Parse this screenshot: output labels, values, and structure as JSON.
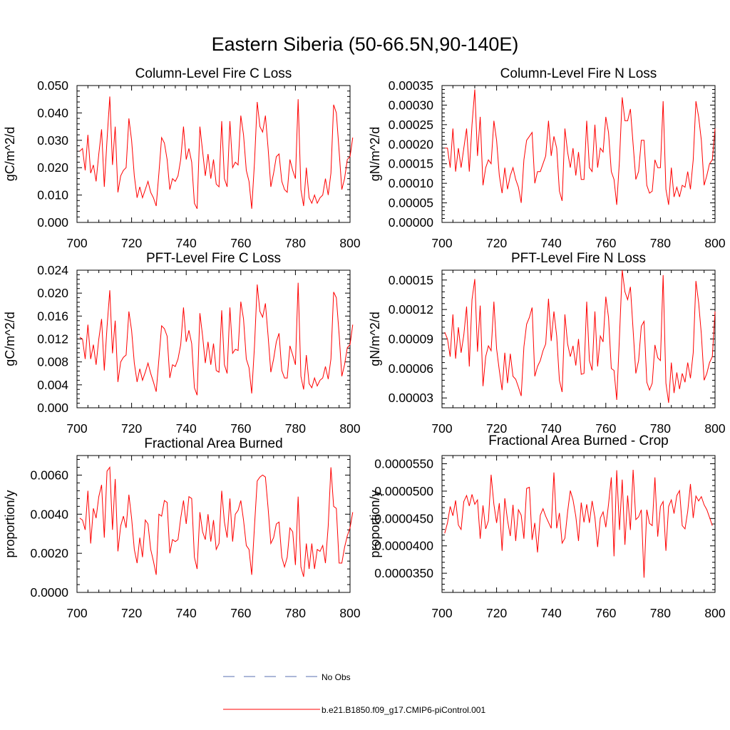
{
  "chart_data": {
    "type": "line",
    "title": "Eastern Siberia (50-66.5N,90-140E)",
    "legend": {
      "placement": "bottom",
      "entries": [
        {
          "label": "No Obs",
          "color": "#5a6fb0",
          "style": "dashed"
        },
        {
          "label": "b.e21.B1850.f09_g17.CMIP6-piControl.001",
          "color": "#ff0000",
          "style": "solid"
        }
      ]
    },
    "panels": [
      {
        "title": "Column-Level Fire C Loss",
        "ylabel": "gC/m^2/d",
        "xlim": [
          700,
          800
        ],
        "ylim": [
          0,
          0.05
        ],
        "xticks": [
          700,
          720,
          740,
          760,
          780,
          800
        ],
        "xtick_labels": [
          "700",
          "720",
          "740",
          "760",
          "780",
          "800"
        ],
        "yticks": [
          0,
          0.01,
          0.02,
          0.03,
          0.04,
          0.05
        ],
        "ytick_labels": [
          "0.000",
          "0.010",
          "0.020",
          "0.030",
          "0.040",
          "0.050"
        ],
        "x_start": 701,
        "values": [
          0.026,
          0.027,
          0.019,
          0.032,
          0.018,
          0.021,
          0.015,
          0.025,
          0.034,
          0.013,
          0.03,
          0.046,
          0.021,
          0.035,
          0.011,
          0.017,
          0.019,
          0.02,
          0.038,
          0.03,
          0.017,
          0.009,
          0.013,
          0.009,
          0.012,
          0.015,
          0.011,
          0.009,
          0.006,
          0.018,
          0.031,
          0.029,
          0.023,
          0.012,
          0.016,
          0.015,
          0.017,
          0.023,
          0.035,
          0.023,
          0.027,
          0.022,
          0.007,
          0.005,
          0.035,
          0.026,
          0.017,
          0.025,
          0.016,
          0.023,
          0.014,
          0.013,
          0.037,
          0.016,
          0.013,
          0.037,
          0.02,
          0.022,
          0.021,
          0.039,
          0.032,
          0.019,
          0.015,
          0.005,
          0.022,
          0.044,
          0.035,
          0.033,
          0.039,
          0.027,
          0.013,
          0.018,
          0.024,
          0.025,
          0.015,
          0.012,
          0.011,
          0.023,
          0.019,
          0.016,
          0.045,
          0.012,
          0.006,
          0.02,
          0.009,
          0.007,
          0.01,
          0.007,
          0.009,
          0.01,
          0.016,
          0.01,
          0.018,
          0.043,
          0.04,
          0.026,
          0.012,
          0.016,
          0.023,
          0.024,
          0.031
        ]
      },
      {
        "title": "Column-Level Fire N Loss",
        "ylabel": "gN/m^2/d",
        "xlim": [
          700,
          800
        ],
        "ylim": [
          0,
          0.00035
        ],
        "xticks": [
          700,
          720,
          740,
          760,
          780,
          800
        ],
        "xtick_labels": [
          "700",
          "720",
          "740",
          "760",
          "780",
          "800"
        ],
        "yticks": [
          0,
          5e-05,
          0.0001,
          0.00015,
          0.0002,
          0.00025,
          0.0003,
          0.00035
        ],
        "ytick_labels": [
          "0.00000",
          "0.00005",
          "0.00010",
          "0.00015",
          "0.00020",
          "0.00025",
          "0.00030",
          "0.00035"
        ],
        "x_start": 701,
        "values": [
          0.00019,
          0.00019,
          0.00014,
          0.00024,
          0.00013,
          0.00019,
          0.00014,
          0.00019,
          0.00024,
          0.00013,
          0.00025,
          0.00034,
          0.00017,
          0.00027,
          9.5e-05,
          0.00014,
          0.00016,
          0.00015,
          0.00026,
          0.00021,
          0.00012,
          7.5e-05,
          0.00014,
          8.5e-05,
          0.00012,
          0.00014,
          0.00011,
          9e-05,
          5e-05,
          0.00016,
          0.00021,
          0.00022,
          0.00023,
          0.0001,
          0.00013,
          0.00013,
          0.00015,
          0.00017,
          0.00026,
          0.00017,
          0.00022,
          0.00019,
          8e-05,
          5.5e-05,
          0.00024,
          0.00018,
          0.00014,
          0.00019,
          0.00012,
          0.00018,
          0.00011,
          0.00011,
          0.00026,
          0.00014,
          0.00013,
          0.00025,
          0.00014,
          0.00019,
          0.00018,
          0.00027,
          0.00023,
          0.00013,
          0.00011,
          4.5e-05,
          0.00016,
          0.00032,
          0.00026,
          0.00026,
          0.00029,
          0.0002,
          0.00011,
          0.00013,
          0.00021,
          0.00021,
          9.5e-05,
          7.5e-05,
          8e-05,
          0.00016,
          0.00014,
          0.00014,
          0.00031,
          8.5e-05,
          4.5e-05,
          0.00014,
          6.5e-05,
          9e-05,
          6.5e-05,
          9.5e-05,
          9e-05,
          0.00013,
          8.5e-05,
          0.00016,
          0.00031,
          0.00027,
          0.00021,
          9.5e-05,
          0.00012,
          0.00015,
          0.00016,
          0.00024
        ]
      },
      {
        "title": "PFT-Level Fire C Loss",
        "ylabel": "gC/m^2/d",
        "xlim": [
          700,
          800
        ],
        "ylim": [
          0,
          0.024
        ],
        "xticks": [
          700,
          720,
          740,
          760,
          780,
          800
        ],
        "xtick_labels": [
          "700",
          "720",
          "740",
          "760",
          "780",
          "800"
        ],
        "yticks": [
          0,
          0.004,
          0.008,
          0.012,
          0.016,
          0.02,
          0.024
        ],
        "ytick_labels": [
          "0.000",
          "0.004",
          "0.008",
          "0.012",
          "0.016",
          "0.020",
          "0.024"
        ],
        "x_start": 701,
        "values": [
          0.0123,
          0.012,
          0.0085,
          0.0145,
          0.0085,
          0.011,
          0.0075,
          0.012,
          0.0155,
          0.0065,
          0.014,
          0.0205,
          0.0095,
          0.0152,
          0.0045,
          0.008,
          0.0088,
          0.0092,
          0.0168,
          0.0135,
          0.0078,
          0.0045,
          0.0068,
          0.0048,
          0.0062,
          0.0078,
          0.006,
          0.0045,
          0.0028,
          0.0085,
          0.0143,
          0.0138,
          0.0125,
          0.0052,
          0.0075,
          0.0072,
          0.0085,
          0.011,
          0.0175,
          0.0115,
          0.0135,
          0.0112,
          0.0035,
          0.0022,
          0.0165,
          0.0125,
          0.0078,
          0.0115,
          0.0075,
          0.0112,
          0.0065,
          0.0062,
          0.017,
          0.0075,
          0.006,
          0.0175,
          0.0095,
          0.0102,
          0.01,
          0.0185,
          0.0155,
          0.0085,
          0.007,
          0.0025,
          0.0108,
          0.0215,
          0.0168,
          0.0158,
          0.0182,
          0.0125,
          0.0062,
          0.0085,
          0.0115,
          0.013,
          0.0065,
          0.0052,
          0.0052,
          0.0108,
          0.0092,
          0.0075,
          0.0218,
          0.0055,
          0.0032,
          0.0092,
          0.0042,
          0.0035,
          0.0052,
          0.0038,
          0.0048,
          0.0052,
          0.0072,
          0.005,
          0.0085,
          0.0202,
          0.0192,
          0.0128,
          0.0055,
          0.0075,
          0.0105,
          0.011,
          0.0145
        ]
      },
      {
        "title": "PFT-Level Fire N Loss",
        "ylabel": "gN/m^2/d",
        "xlim": [
          700,
          800
        ],
        "ylim": [
          2e-05,
          0.00016
        ],
        "xticks": [
          700,
          720,
          740,
          760,
          780,
          800
        ],
        "xtick_labels": [
          "700",
          "720",
          "740",
          "760",
          "780",
          "800"
        ],
        "yticks": [
          3e-05,
          6e-05,
          9e-05,
          0.00012,
          0.00015
        ],
        "ytick_labels": [
          "0.00003",
          "0.00006",
          "0.00009",
          "0.00012",
          "0.00015"
        ],
        "x_start": 701,
        "values": [
          9.7e-05,
          9e-05,
          7.2e-05,
          0.000115,
          7e-05,
          0.000102,
          7.6e-05,
          9.4e-05,
          0.000123,
          6.2e-05,
          0.00013,
          0.000151,
          7.7e-05,
          0.000124,
          4.2e-05,
          7.2e-05,
          8.3e-05,
          7.8e-05,
          0.000128,
          8e-05,
          5.8e-05,
          3.8e-05,
          7.6e-05,
          4.5e-05,
          7.5e-05,
          5.2e-05,
          4.9e-05,
          4.1e-05,
          3.2e-05,
          8.2e-05,
          0.000105,
          0.000112,
          0.000122,
          5.2e-05,
          6.2e-05,
          6.8e-05,
          7.8e-05,
          8.5e-05,
          0.000131,
          8.8e-05,
          0.000118,
          9.3e-05,
          4.8e-05,
          3.6e-05,
          0.000115,
          8.5e-05,
          7.2e-05,
          8.3e-05,
          6.3e-05,
          9e-05,
          5.4e-05,
          5.5e-05,
          0.000128,
          6.8e-05,
          5.8e-05,
          0.000118,
          6.2e-05,
          9.3e-05,
          8.7e-05,
          0.000133,
          0.000112,
          6e-05,
          5.8e-05,
          2.8e-05,
          9.3e-05,
          0.00016,
          0.000138,
          0.00013,
          0.000143,
          9.9e-05,
          5.5e-05,
          6.8e-05,
          0.000103,
          0.000108,
          4.6e-05,
          3.8e-05,
          4.5e-05,
          8.4e-05,
          7.1e-05,
          6.8e-05,
          0.000155,
          4.5e-05,
          2.5e-05,
          6.6e-05,
          3.5e-05,
          5.6e-05,
          3.9e-05,
          5.5e-05,
          4.6e-05,
          6.6e-05,
          5e-05,
          7.6e-05,
          0.000149,
          0.000127,
          9.5e-05,
          4.8e-05,
          5.5e-05,
          6.6e-05,
          7.2e-05,
          0.000118
        ]
      },
      {
        "title": "Fractional Area Burned",
        "ylabel": "proportion/y",
        "xlim": [
          700,
          800
        ],
        "ylim": [
          0,
          0.007
        ],
        "xticks": [
          700,
          720,
          740,
          760,
          780,
          800
        ],
        "xtick_labels": [
          "700",
          "720",
          "740",
          "760",
          "780",
          "800"
        ],
        "yticks": [
          0,
          0.002,
          0.004,
          0.006
        ],
        "ytick_labels": [
          "0.0000",
          "0.0020",
          "0.0040",
          "0.0060"
        ],
        "x_start": 701,
        "values": [
          0.0038,
          0.0037,
          0.0032,
          0.0052,
          0.0025,
          0.0043,
          0.0038,
          0.0049,
          0.0055,
          0.0028,
          0.0062,
          0.0064,
          0.0032,
          0.0058,
          0.0021,
          0.0034,
          0.0039,
          0.0033,
          0.005,
          0.0038,
          0.0022,
          0.0015,
          0.0028,
          0.0018,
          0.0037,
          0.0035,
          0.0022,
          0.0016,
          0.0009,
          0.004,
          0.0039,
          0.0047,
          0.0046,
          0.002,
          0.0027,
          0.0026,
          0.0027,
          0.0038,
          0.0047,
          0.0035,
          0.0049,
          0.0048,
          0.0018,
          0.0012,
          0.0041,
          0.0031,
          0.0027,
          0.004,
          0.0026,
          0.0037,
          0.0022,
          0.0025,
          0.0052,
          0.0036,
          0.0028,
          0.0048,
          0.0026,
          0.004,
          0.0042,
          0.0047,
          0.0037,
          0.0024,
          0.0022,
          0.0009,
          0.0034,
          0.0057,
          0.0059,
          0.006,
          0.0059,
          0.0043,
          0.0025,
          0.0028,
          0.0035,
          0.0036,
          0.0018,
          0.0013,
          0.0018,
          0.0033,
          0.0031,
          0.0014,
          0.0049,
          0.0013,
          0.0008,
          0.0025,
          0.0012,
          0.0025,
          0.0012,
          0.0022,
          0.0021,
          0.0024,
          0.0015,
          0.0034,
          0.0064,
          0.0044,
          0.0043,
          0.0015,
          0.0015,
          0.0023,
          0.0029,
          0.0033,
          0.0041
        ]
      },
      {
        "title": "Fractional Area Burned - Crop",
        "ylabel": "proportion/y",
        "xlim": [
          700,
          800
        ],
        "ylim": [
          3.15e-05,
          5.65e-05
        ],
        "xticks": [
          700,
          720,
          740,
          760,
          780,
          800
        ],
        "xtick_labels": [
          "700",
          "720",
          "740",
          "760",
          "780",
          "800"
        ],
        "yticks": [
          3.5e-05,
          4e-05,
          4.5e-05,
          5e-05,
          5.5e-05
        ],
        "ytick_labels": [
          "0.0000350",
          "0.0000400",
          "0.0000450",
          "0.0000500",
          "0.0000550"
        ],
        "x_start": 701,
        "values": [
          4.23e-05,
          4.42e-05,
          4.72e-05,
          4.55e-05,
          4.83e-05,
          4.38e-05,
          4.3e-05,
          4.81e-05,
          4.92e-05,
          4.73e-05,
          4.94e-05,
          4.76e-05,
          4.84e-05,
          4.13e-05,
          4.74e-05,
          4.31e-05,
          4.46e-05,
          5.3e-05,
          4.76e-05,
          4.42e-05,
          4.78e-05,
          3.91e-05,
          4.87e-05,
          4.47e-05,
          4.18e-05,
          4.75e-05,
          4.09e-05,
          4.66e-05,
          4.56e-05,
          4.13e-05,
          5.05e-05,
          5.07e-05,
          4.11e-05,
          4.42e-05,
          3.88e-05,
          4.56e-05,
          4.68e-05,
          4.54e-05,
          4.43e-05,
          4.32e-05,
          5.34e-05,
          4.32e-05,
          4.6e-05,
          4.05e-05,
          4.14e-05,
          4.62e-05,
          5.01e-05,
          4.84e-05,
          4.54e-05,
          4.09e-05,
          4.79e-05,
          4.43e-05,
          4.76e-05,
          4.42e-05,
          4.82e-05,
          4.52e-05,
          3.98e-05,
          4.51e-05,
          4.62e-05,
          4.34e-05,
          4.76e-05,
          5.25e-05,
          3.81e-05,
          5.38e-05,
          4.29e-05,
          5.21e-05,
          4.02e-05,
          4.92e-05,
          4.29e-05,
          5.39e-05,
          4.48e-05,
          4.53e-05,
          4.66e-05,
          3.42e-05,
          4.66e-05,
          4.41e-05,
          4.37e-05,
          5.25e-05,
          4.17e-05,
          4.72e-05,
          4.81e-05,
          3.91e-05,
          4.72e-05,
          4.84e-05,
          4.59e-05,
          4.92e-05,
          5.01e-05,
          4.37e-05,
          4.31e-05,
          4.63e-05,
          5.13e-05,
          4.51e-05,
          4.91e-05,
          4.82e-05,
          4.9e-05,
          4.75e-05,
          4.66e-05,
          4.52e-05,
          4.37e-05
        ]
      }
    ]
  }
}
